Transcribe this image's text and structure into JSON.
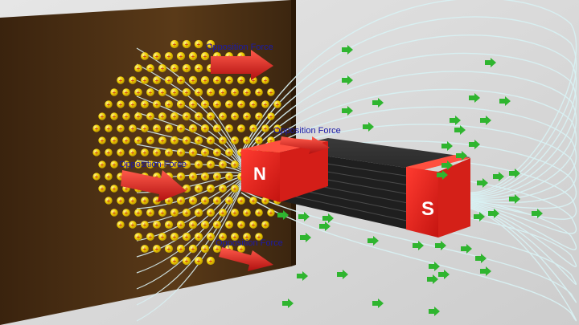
{
  "magnet": {
    "north_label": "N",
    "south_label": "S",
    "pole_color": "#e8251f",
    "body_color": "#262626"
  },
  "plate": {
    "color": "#4a2e12",
    "charge_color": "#f0d000",
    "charge_symbol": "+"
  },
  "field": {
    "line_color": "#d8f0f2",
    "arrow_color": "#2fb52f"
  },
  "forces": [
    {
      "label": "Opposition Force"
    },
    {
      "label": "Opposition Force"
    },
    {
      "label": "Opposition Force"
    },
    {
      "label": "Opposition Force"
    }
  ],
  "force_arrow_color": "#e02020"
}
